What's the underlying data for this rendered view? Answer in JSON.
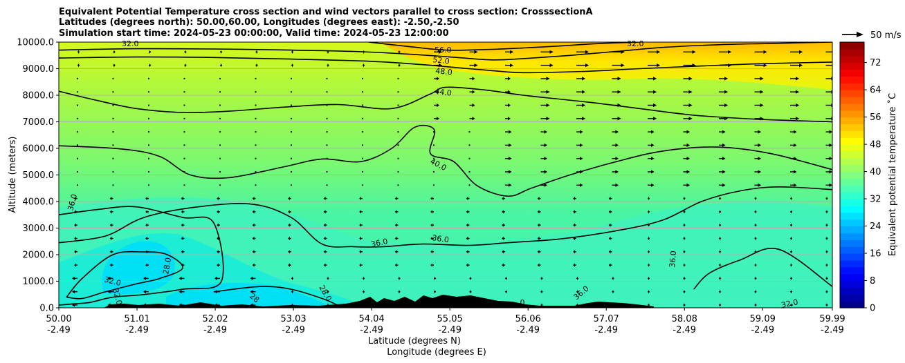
{
  "chart_data": {
    "type": "contour",
    "title_lines": [
      "Equivalent Potential Temperature cross section and wind vectors parallel to cross section: CrosssectionA",
      "Latitudes (degrees north): 50.00,60.00, Longitudes (degrees east): -2.50,-2.50",
      "Simulation start time: 2024-05-23 00:00:00, Valid time: 2024-05-23 12:00:00"
    ],
    "xlabel": "Latitude (degrees N)",
    "xlabel2": "Longitude (degrees E)",
    "ylabel": "Altitude (meters)",
    "xlim": [
      50.0,
      59.99
    ],
    "ylim": [
      0,
      10000
    ],
    "x_ticks": [
      {
        "lat": "50.00",
        "lon": "-2.49"
      },
      {
        "lat": "51.01",
        "lon": "-2.49"
      },
      {
        "lat": "52.02",
        "lon": "-2.49"
      },
      {
        "lat": "53.03",
        "lon": "-2.49"
      },
      {
        "lat": "54.04",
        "lon": "-2.49"
      },
      {
        "lat": "55.05",
        "lon": "-2.49"
      },
      {
        "lat": "56.06",
        "lon": "-2.49"
      },
      {
        "lat": "57.07",
        "lon": "-2.49"
      },
      {
        "lat": "58.08",
        "lon": "-2.49"
      },
      {
        "lat": "59.09",
        "lon": "-2.49"
      },
      {
        "lat": "59.99",
        "lon": "-2.49"
      }
    ],
    "y_ticks": [
      "0.0",
      "1000.0",
      "2000.0",
      "3000.0",
      "4000.0",
      "5000.0",
      "6000.0",
      "7000.0",
      "8000.0",
      "9000.0",
      "10000.0"
    ],
    "colorbar": {
      "label": "Equivalent potential temperature $^\\circ$C",
      "label_display": "Equivalent potential temperature ˚C",
      "ticks": [
        "0",
        "8",
        "16",
        "24",
        "32",
        "40",
        "48",
        "56",
        "64",
        "72"
      ],
      "min": 0,
      "max": 78
    },
    "quiver_key": "50 m/s",
    "contour_labels": [
      "32.0",
      "56.0",
      "52.0",
      "48.0",
      "44.0",
      "40.0",
      "36.0",
      "36.0",
      "36.0",
      "36.0",
      "36.0",
      "32.0",
      "32.0",
      "32.0",
      "28.0",
      "28.0",
      "28",
      "32.0",
      ".0"
    ],
    "contour_levels": [
      28,
      32,
      36,
      40,
      44,
      48,
      52,
      56
    ],
    "contours": [
      {
        "level": 56,
        "points": [
          [
            54.0,
            10000
          ],
          [
            54.5,
            9840
          ],
          [
            55.0,
            9700
          ],
          [
            55.5,
            9720
          ],
          [
            56.0,
            9780
          ],
          [
            56.5,
            9860
          ],
          [
            57.0,
            9950
          ],
          [
            57.5,
            10000
          ]
        ]
      },
      {
        "level": 52,
        "points": [
          [
            50.0,
            9700
          ],
          [
            51.0,
            9750
          ],
          [
            52.0,
            9740
          ],
          [
            53.0,
            9700
          ],
          [
            53.8,
            9650
          ],
          [
            54.5,
            9550
          ],
          [
            55.1,
            9430
          ],
          [
            55.6,
            9330
          ],
          [
            56.0,
            9380
          ],
          [
            56.6,
            9500
          ],
          [
            57.2,
            9650
          ],
          [
            57.8,
            9800
          ],
          [
            58.5,
            9900
          ],
          [
            59.2,
            9950
          ],
          [
            59.99,
            10000
          ]
        ]
      },
      {
        "level": 48,
        "points": [
          [
            50.0,
            9400
          ],
          [
            51.0,
            9440
          ],
          [
            52.0,
            9420
          ],
          [
            53.0,
            9360
          ],
          [
            54.0,
            9280
          ],
          [
            54.7,
            9150
          ],
          [
            55.1,
            9050
          ],
          [
            55.5,
            8950
          ],
          [
            56.0,
            8850
          ],
          [
            56.8,
            8900
          ],
          [
            57.5,
            9000
          ],
          [
            58.3,
            9100
          ],
          [
            59.0,
            9180
          ],
          [
            59.99,
            9250
          ]
        ]
      },
      {
        "level": 44,
        "points": [
          [
            50.0,
            8150
          ],
          [
            50.5,
            7800
          ],
          [
            51.0,
            7500
          ],
          [
            51.6,
            7350
          ],
          [
            52.2,
            7400
          ],
          [
            52.9,
            7550
          ],
          [
            53.6,
            7650
          ],
          [
            54.3,
            7500
          ],
          [
            54.8,
            8050
          ],
          [
            55.0,
            8300
          ],
          [
            55.5,
            8200
          ],
          [
            56.0,
            8000
          ],
          [
            56.8,
            7750
          ],
          [
            57.5,
            7500
          ],
          [
            58.2,
            7250
          ],
          [
            59.0,
            7100
          ],
          [
            59.99,
            7000
          ]
        ]
      },
      {
        "level": 40,
        "points": [
          [
            50.0,
            6100
          ],
          [
            50.8,
            5980
          ],
          [
            51.3,
            5700
          ],
          [
            51.7,
            5000
          ],
          [
            52.2,
            4900
          ],
          [
            52.9,
            5300
          ],
          [
            53.4,
            5600
          ],
          [
            53.9,
            5500
          ],
          [
            54.3,
            6000
          ],
          [
            54.6,
            6800
          ],
          [
            54.85,
            6700
          ],
          [
            54.8,
            5800
          ],
          [
            55.1,
            5500
          ],
          [
            55.4,
            4600
          ],
          [
            55.8,
            4200
          ],
          [
            56.1,
            4500
          ],
          [
            56.6,
            5000
          ],
          [
            57.2,
            5500
          ],
          [
            57.8,
            5900
          ],
          [
            58.5,
            6050
          ],
          [
            59.2,
            5800
          ],
          [
            59.99,
            5200
          ]
        ]
      },
      {
        "level": 36,
        "points": [
          [
            50.0,
            2450
          ],
          [
            50.6,
            2700
          ],
          [
            51.1,
            3400
          ],
          [
            51.8,
            3800
          ],
          [
            52.5,
            3900
          ],
          [
            53.0,
            3400
          ],
          [
            53.4,
            2400
          ],
          [
            53.8,
            2300
          ],
          [
            54.2,
            2300
          ],
          [
            54.7,
            2400
          ],
          [
            55.3,
            2350
          ],
          [
            55.8,
            2450
          ],
          [
            56.5,
            2600
          ],
          [
            57.2,
            2900
          ],
          [
            57.8,
            3300
          ],
          [
            58.3,
            4000
          ],
          [
            58.8,
            4400
          ],
          [
            59.3,
            4550
          ],
          [
            59.99,
            4450
          ]
        ]
      },
      {
        "level": 32,
        "points": [
          [
            50.0,
            3500
          ],
          [
            50.5,
            3700
          ],
          [
            51.0,
            3800
          ],
          [
            51.6,
            3400
          ],
          [
            52.0,
            3200
          ],
          [
            52.1,
            1000
          ],
          [
            51.6,
            700
          ],
          [
            51.1,
            500
          ],
          [
            50.7,
            400
          ],
          [
            50.4,
            200
          ],
          [
            50.2,
            150
          ],
          [
            50.0,
            100
          ]
        ]
      },
      {
        "level": 32,
        "points": [
          [
            58.2,
            700
          ],
          [
            58.4,
            1300
          ],
          [
            58.8,
            1800
          ],
          [
            59.3,
            2200
          ],
          [
            59.99,
            800
          ]
        ]
      },
      {
        "level": 28,
        "points": [
          [
            50.1,
            400
          ],
          [
            50.3,
            1100
          ],
          [
            50.7,
            2000
          ],
          [
            51.1,
            2100
          ],
          [
            51.4,
            2000
          ],
          [
            51.6,
            1500
          ],
          [
            51.3,
            1100
          ],
          [
            51.0,
            900
          ],
          [
            50.6,
            600
          ],
          [
            50.3,
            350
          ],
          [
            50.1,
            400
          ]
        ]
      },
      {
        "level": 28,
        "points": [
          [
            52.0,
            600
          ],
          [
            52.6,
            800
          ],
          [
            53.0,
            700
          ],
          [
            53.4,
            350
          ],
          [
            53.6,
            100
          ]
        ]
      }
    ]
  }
}
